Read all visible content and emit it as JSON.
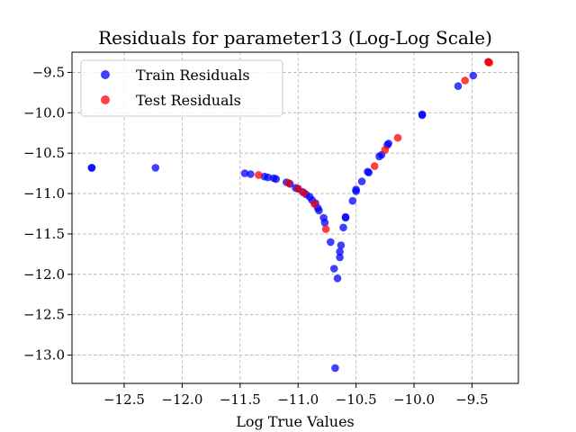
{
  "chart_data": {
    "type": "scatter",
    "title": "Residuals for parameter13 (Log-Log Scale)",
    "xlabel": "Log True Values",
    "ylabel": "",
    "xlim": [
      -12.95,
      -9.1
    ],
    "ylim": [
      -13.35,
      -9.25
    ],
    "xticks": [
      -12.5,
      -12.0,
      -11.5,
      -11.0,
      -10.5,
      -10.0,
      -9.5
    ],
    "xtick_labels": [
      "−12.5",
      "−12.0",
      "−11.5",
      "−11.0",
      "−10.5",
      "−10.0",
      "−9.5"
    ],
    "yticks": [
      -9.5,
      -10.0,
      -10.5,
      -11.0,
      -11.5,
      -12.0,
      -12.5,
      -13.0
    ],
    "ytick_labels": [
      "−9.5",
      "−10.0",
      "−10.5",
      "−11.0",
      "−11.5",
      "−12.0",
      "−12.5",
      "−13.0"
    ],
    "grid": true,
    "legend_position": "top-left",
    "series": [
      {
        "name": "Train Residuals",
        "color": "#0000ff",
        "points": [
          [
            -12.78,
            -10.68
          ],
          [
            -12.23,
            -10.68
          ],
          [
            -11.46,
            -10.75
          ],
          [
            -11.41,
            -10.76
          ],
          [
            -11.29,
            -10.79
          ],
          [
            -11.26,
            -10.8
          ],
          [
            -11.21,
            -10.81
          ],
          [
            -11.19,
            -10.82
          ],
          [
            -11.1,
            -10.86
          ],
          [
            -11.07,
            -10.88
          ],
          [
            -11.02,
            -10.93
          ],
          [
            -11.0,
            -10.94
          ],
          [
            -10.96,
            -10.98
          ],
          [
            -10.93,
            -11.01
          ],
          [
            -10.9,
            -11.04
          ],
          [
            -10.88,
            -11.08
          ],
          [
            -10.85,
            -11.12
          ],
          [
            -10.83,
            -11.18
          ],
          [
            -10.82,
            -11.21
          ],
          [
            -10.78,
            -11.3
          ],
          [
            -10.77,
            -11.36
          ],
          [
            -10.72,
            -11.6
          ],
          [
            -10.69,
            -11.93
          ],
          [
            -10.66,
            -12.05
          ],
          [
            -10.64,
            -11.79
          ],
          [
            -10.64,
            -11.72
          ],
          [
            -10.63,
            -11.64
          ],
          [
            -10.61,
            -11.42
          ],
          [
            -10.59,
            -11.29
          ],
          [
            -10.59,
            -11.3
          ],
          [
            -10.53,
            -11.09
          ],
          [
            -10.5,
            -10.95
          ],
          [
            -10.5,
            -10.97
          ],
          [
            -10.45,
            -10.85
          ],
          [
            -10.4,
            -10.73
          ],
          [
            -10.39,
            -10.74
          ],
          [
            -10.3,
            -10.54
          ],
          [
            -10.28,
            -10.52
          ],
          [
            -10.23,
            -10.4
          ],
          [
            -10.22,
            -10.38
          ],
          [
            -9.93,
            -10.02
          ],
          [
            -9.93,
            -10.03
          ],
          [
            -9.62,
            -9.67
          ],
          [
            -9.49,
            -9.54
          ],
          [
            -9.36,
            -9.37
          ],
          [
            -12.78,
            -10.68
          ],
          [
            -10.68,
            -13.16
          ]
        ]
      },
      {
        "name": "Test Residuals",
        "color": "#ff0000",
        "points": [
          [
            -11.34,
            -10.77
          ],
          [
            -11.08,
            -10.87
          ],
          [
            -11.0,
            -10.94
          ],
          [
            -10.95,
            -10.99
          ],
          [
            -10.86,
            -11.13
          ],
          [
            -10.76,
            -11.44
          ],
          [
            -10.34,
            -10.66
          ],
          [
            -10.25,
            -10.46
          ],
          [
            -10.14,
            -10.31
          ],
          [
            -9.56,
            -9.6
          ],
          [
            -9.36,
            -9.37
          ],
          [
            -9.35,
            -9.38
          ]
        ]
      }
    ]
  }
}
